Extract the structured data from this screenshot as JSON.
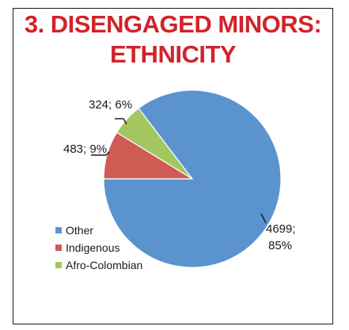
{
  "title": {
    "line1": "3. DISENGAGED MINORS:",
    "line2": "ETHNICITY"
  },
  "chart_data": {
    "type": "pie",
    "title": "3. DISENGAGED MINORS: ETHNICITY",
    "slices": [
      {
        "name": "Other",
        "value": 4699,
        "percent": 85,
        "color": "#5b93cf",
        "label": "4699;",
        "label2": "85%"
      },
      {
        "name": "Indigenous",
        "value": 483,
        "percent": 9,
        "color": "#cf5b55",
        "label": "483; 9%"
      },
      {
        "name": "Afro-Colombian",
        "value": 324,
        "percent": 6,
        "color": "#a3c760",
        "label": "324; 6%"
      }
    ],
    "legend": [
      "Other",
      "Indigenous",
      "Afro-Colombian"
    ],
    "legend_position": "bottom-left"
  }
}
